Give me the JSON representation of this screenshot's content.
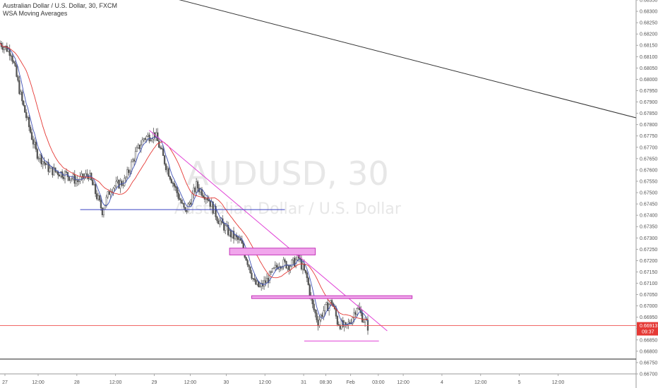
{
  "header": {
    "title": "Australian Dollar / U.S. Dollar, 30, FXCM",
    "indicator": "WSA Moving Averages"
  },
  "watermark": {
    "symbol": "AUDUSD, 30",
    "description": "Australian Dollar / U.S. Dollar"
  },
  "colors": {
    "candle": "#555555",
    "ma_fast": "#3f51b5",
    "ma_slow": "#e53935",
    "trendline": "#e040d6",
    "zone_fill": "#f1a6ec",
    "zone_border": "#c434b8",
    "support_line": "#3940c2",
    "long_trend": "#333333",
    "price_line": "#ef5350"
  },
  "price_label": {
    "price": "0.66913",
    "countdown": "09:37"
  },
  "chart_data": {
    "type": "candlestick",
    "title": "Australian Dollar / U.S. Dollar, 30, FXCM",
    "ylim": [
      0.667,
      0.6835
    ],
    "y_ticks": [
      "0.68350",
      "0.68300",
      "0.68250",
      "0.68200",
      "0.68150",
      "0.68100",
      "0.68050",
      "0.68000",
      "0.67950",
      "0.67900",
      "0.67850",
      "0.67800",
      "0.67750",
      "0.67700",
      "0.67650",
      "0.67600",
      "0.67550",
      "0.67500",
      "0.67450",
      "0.67400",
      "0.67350",
      "0.67300",
      "0.67250",
      "0.67200",
      "0.67150",
      "0.67100",
      "0.67050",
      "0.67000",
      "0.66950",
      "0.66900",
      "0.66850",
      "0.66800",
      "0.66750",
      "0.66700"
    ],
    "x_ticks": [
      "27",
      "12:00",
      "28",
      "12:00",
      "29",
      "12:00",
      "30",
      "12:00",
      "31",
      "08:30",
      "Feb",
      "03:00",
      "12:00",
      "4",
      "12:00",
      "5",
      "12:00"
    ],
    "x_range": [
      0,
      230
    ],
    "x_tick_positions": [
      0,
      12,
      26,
      40,
      54,
      67,
      80,
      94,
      108,
      116,
      125,
      135,
      144,
      158,
      172,
      186,
      200
    ],
    "price_path": [
      [
        0,
        0.6816
      ],
      [
        4,
        0.6812
      ],
      [
        8,
        0.679
      ],
      [
        13,
        0.6768
      ],
      [
        18,
        0.676
      ],
      [
        24,
        0.6758
      ],
      [
        28,
        0.6755
      ],
      [
        32,
        0.6758
      ],
      [
        37,
        0.6742
      ],
      [
        40,
        0.6752
      ],
      [
        45,
        0.6755
      ],
      [
        49,
        0.6767
      ],
      [
        52,
        0.6774
      ],
      [
        56,
        0.6776
      ],
      [
        60,
        0.6762
      ],
      [
        64,
        0.675
      ],
      [
        67,
        0.6741
      ],
      [
        71,
        0.6753
      ],
      [
        75,
        0.6748
      ],
      [
        79,
        0.6738
      ],
      [
        83,
        0.6732
      ],
      [
        87,
        0.6728
      ],
      [
        90,
        0.6718
      ],
      [
        92,
        0.671
      ],
      [
        94,
        0.6708
      ],
      [
        97,
        0.6712
      ],
      [
        101,
        0.6719
      ],
      [
        105,
        0.6718
      ],
      [
        108,
        0.6721
      ],
      [
        111,
        0.6712
      ],
      [
        113,
        0.67
      ],
      [
        115,
        0.6693
      ],
      [
        117,
        0.6698
      ],
      [
        120,
        0.6702
      ],
      [
        122,
        0.6693
      ],
      [
        125,
        0.669
      ],
      [
        127,
        0.6694
      ],
      [
        129,
        0.67
      ],
      [
        131,
        0.6695
      ],
      [
        133,
        0.6691
      ]
    ],
    "overlays": {
      "resistance_trendline": {
        "x": [
          54,
          140
        ],
        "y": [
          0.67775,
          0.6689
        ]
      },
      "long_downtrend_line": {
        "x": [
          62,
          230
        ],
        "y": [
          0.6836,
          0.6783
        ]
      },
      "horizontal_support": {
        "x": [
          29,
          103
        ],
        "y": 0.67425
      },
      "upper_zone": {
        "x": [
          83,
          114
        ],
        "y": [
          0.67225,
          0.67255
        ]
      },
      "lower_zone": {
        "x": [
          91,
          149
        ],
        "y": [
          0.67035,
          0.67045
        ]
      },
      "bottom_line": {
        "x": [
          110,
          137
        ],
        "y": 0.66845
      },
      "last_price": 0.66913
    }
  }
}
